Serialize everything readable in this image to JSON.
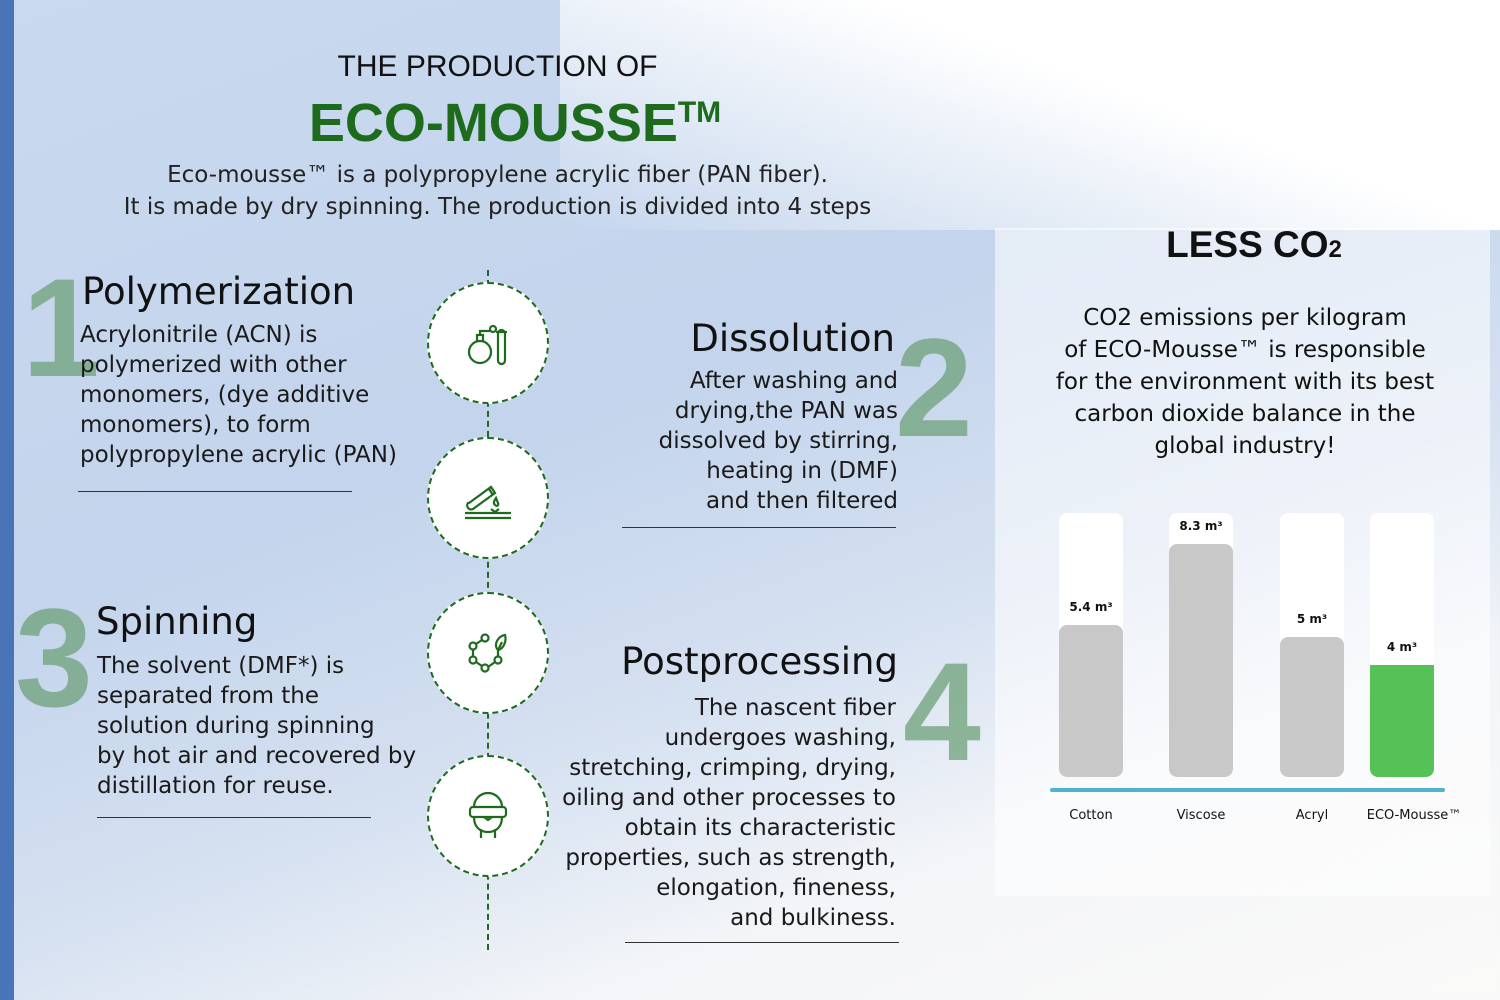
{
  "header": {
    "pre_title": "THE PRODUCTION OF",
    "title": "ECO-MOUSSE",
    "title_tm": "TM",
    "subtitle_line1": "Eco-mousse™ is a polypropylene acrylic fiber (PAN fiber).",
    "subtitle_line2": "It is made by dry spinning. The production is divided into 4 steps"
  },
  "steps": [
    {
      "number": "1",
      "title": "Polymerization",
      "text": [
        "Acrylonitrile (ACN) is",
        "polymerized with other",
        "monomers, (dye additive",
        "monomers), to form",
        "polypropylene acrylic (PAN)"
      ],
      "icon": "flask-test-tube-icon"
    },
    {
      "number": "2",
      "title": "Dissolution",
      "text": [
        "After washing and",
        "drying,the PAN was",
        "dissolved by stirring,",
        "heating in (DMF)",
        "and then filtered"
      ],
      "icon": "test-tube-drop-icon"
    },
    {
      "number": "3",
      "title": "Spinning",
      "text": [
        "The solvent (DMF*) is",
        "separated from the",
        "solution during spinning",
        "by hot air and recovered by",
        "distillation for reuse."
      ],
      "icon": "molecule-leaf-icon"
    },
    {
      "number": "4",
      "title": "Postprocessing",
      "text": [
        "The nascent fiber",
        "undergoes washing,",
        "stretching, crimping, drying,",
        "oiling and other processes to",
        "obtain its characteristic",
        "properties, such as strength,",
        "elongation, fineness,",
        "and bulkiness."
      ],
      "icon": "worker-goggles-icon"
    }
  ],
  "co2": {
    "title": "LESS CO",
    "title_sub": "2",
    "text": [
      "CO2 emissions per kilogram",
      "of ECO-Mousse™ is responsible",
      "for the environment with its best",
      "carbon dioxide balance in the",
      "global industry!"
    ]
  },
  "colors": {
    "brand_green": "#1e6b1e",
    "highlight_bar": "#56c156",
    "bar_gray": "#c8c8c8",
    "axis": "#4fb3cc"
  },
  "chart_data": {
    "type": "bar",
    "categories": [
      "Cotton",
      "Viscose",
      "Acryl",
      "ECO-Mousse™"
    ],
    "values": [
      5.4,
      8.3,
      5,
      4
    ],
    "unit": "m³",
    "data_labels": [
      "5.4 m³",
      "8.3 m³",
      "5 m³",
      "4 m³"
    ],
    "highlight": "ECO-Mousse™",
    "ylim": [
      0,
      10
    ],
    "grid": false
  }
}
